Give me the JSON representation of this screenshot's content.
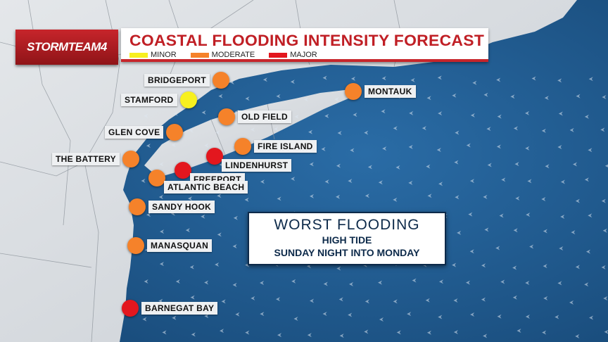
{
  "logo": {
    "text": "STORMTEAM4"
  },
  "title": "COASTAL FLOODING INTENSITY FORECAST",
  "legend": [
    {
      "label": "MINOR",
      "color": "#f7f01f"
    },
    {
      "label": "MODERATE",
      "color": "#f5822a"
    },
    {
      "label": "MAJOR",
      "color": "#e3171e"
    }
  ],
  "locations": [
    {
      "name": "BRIDGEPORT",
      "level": "MODERATE"
    },
    {
      "name": "STAMFORD",
      "level": "MINOR"
    },
    {
      "name": "MONTAUK",
      "level": "MODERATE"
    },
    {
      "name": "OLD FIELD",
      "level": "MODERATE"
    },
    {
      "name": "GLEN COVE",
      "level": "MODERATE"
    },
    {
      "name": "FIRE ISLAND",
      "level": "MODERATE"
    },
    {
      "name": "THE BATTERY",
      "level": "MODERATE"
    },
    {
      "name": "LINDENHURST",
      "level": "MAJOR"
    },
    {
      "name": "FREEPORT",
      "level": "MAJOR"
    },
    {
      "name": "ATLANTIC BEACH",
      "level": "MODERATE"
    },
    {
      "name": "SANDY HOOK",
      "level": "MODERATE"
    },
    {
      "name": "MANASQUAN",
      "level": "MODERATE"
    },
    {
      "name": "BARNEGAT BAY",
      "level": "MAJOR"
    }
  ],
  "callout": {
    "heading": "WORST FLOODING",
    "line1": "HIGH TIDE",
    "line2": "SUNDAY NIGHT INTO MONDAY"
  }
}
